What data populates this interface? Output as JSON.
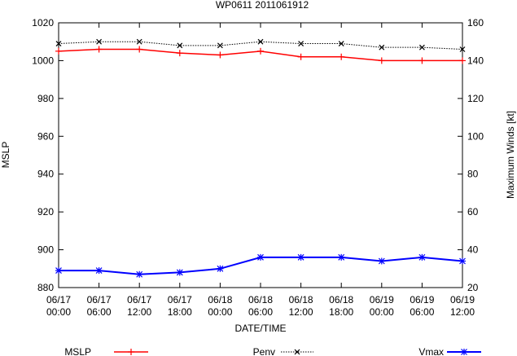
{
  "chart_data": {
    "type": "line",
    "title": "WP0611 2011061912",
    "xlabel": "DATE/TIME",
    "ylabel_left": "MSLP",
    "ylabel_right": "Maximum Winds [kt]",
    "ylim_left": [
      880,
      1020
    ],
    "yticks_left": [
      880,
      900,
      920,
      940,
      960,
      980,
      1000,
      1020
    ],
    "ylim_right": [
      20,
      160
    ],
    "yticks_right": [
      20,
      40,
      60,
      80,
      100,
      120,
      140,
      160
    ],
    "categories": [
      [
        "06/17",
        "00:00"
      ],
      [
        "06/17",
        "06:00"
      ],
      [
        "06/17",
        "12:00"
      ],
      [
        "06/17",
        "18:00"
      ],
      [
        "06/18",
        "00:00"
      ],
      [
        "06/18",
        "06:00"
      ],
      [
        "06/18",
        "12:00"
      ],
      [
        "06/18",
        "18:00"
      ],
      [
        "06/19",
        "00:00"
      ],
      [
        "06/19",
        "06:00"
      ],
      [
        "06/19",
        "12:00"
      ]
    ],
    "legend_position": "bottom",
    "grid": false,
    "series": [
      {
        "name": "MSLP",
        "axis": "left",
        "color": "#ff0000",
        "marker": "plus",
        "line": "solid",
        "values": [
          1005,
          1006,
          1006,
          1004,
          1003,
          1005,
          1002,
          1002,
          1000,
          1000,
          1000
        ]
      },
      {
        "name": "Penv",
        "axis": "left",
        "color": "#000000",
        "marker": "cross",
        "line": "dotted",
        "values": [
          1009,
          1010,
          1010,
          1008,
          1008,
          1010,
          1009,
          1009,
          1007,
          1007,
          1006
        ]
      },
      {
        "name": "Vmax",
        "axis": "right",
        "color": "#0000ff",
        "marker": "star",
        "line": "solid",
        "values": [
          29,
          29,
          27,
          28,
          30,
          36,
          36,
          36,
          34,
          36,
          34
        ]
      }
    ]
  }
}
